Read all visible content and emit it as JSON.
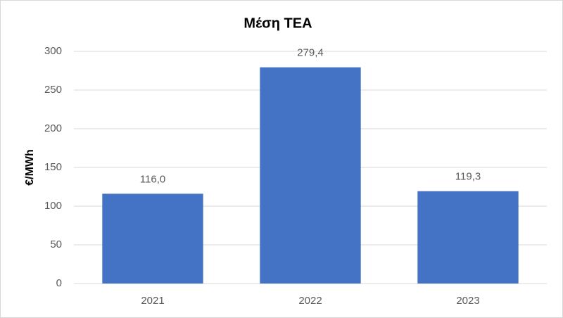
{
  "chart_data": {
    "type": "bar",
    "title": "Μέση ΤΕΑ",
    "y_label": "€/MWh",
    "categories": [
      "2021",
      "2022",
      "2023"
    ],
    "values": [
      116.0,
      279.4,
      119.3
    ],
    "value_labels": [
      "116,0",
      "279,4",
      "119,3"
    ],
    "color": "#4472c4",
    "ylim": [
      0,
      300
    ],
    "yticks": [
      0,
      50,
      100,
      150,
      200,
      250,
      300
    ],
    "grid": true
  }
}
